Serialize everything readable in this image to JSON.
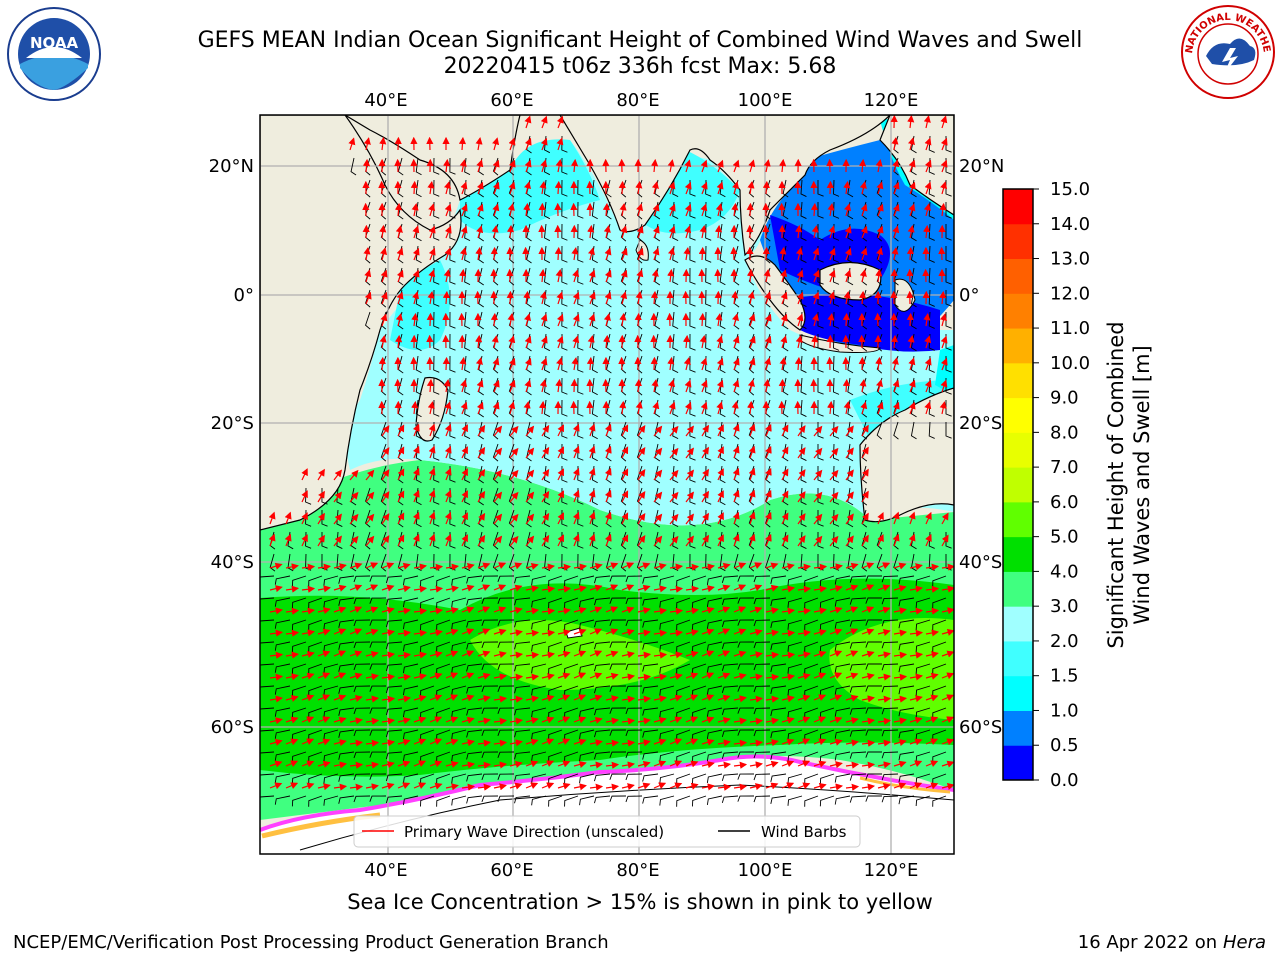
{
  "title": {
    "line1": "GEFS MEAN Indian Ocean Significant Height of Combined Wind Waves and Swell",
    "line2": "20220415 t06z 336h fcst   Max: 5.68"
  },
  "logos": {
    "left": {
      "icon": "noaa-logo",
      "text": "NOAA"
    },
    "right": {
      "icon": "nws-logo",
      "text": "NATIONAL WEATHER SERVICE"
    }
  },
  "map": {
    "lon_ticks": [
      "40°E",
      "60°E",
      "80°E",
      "100°E",
      "120°E"
    ],
    "lat_ticks": [
      "20°N",
      "0°",
      "20°S",
      "40°S",
      "60°S"
    ],
    "legend": {
      "wave_label": "Primary Wave Direction (unscaled)",
      "wind_label": "Wind Barbs"
    }
  },
  "colorbar": {
    "label_line1": "Significant Height of Combined",
    "label_line2": "Wind Waves and Swell [m]",
    "ticks": [
      "0.0",
      "0.5",
      "1.0",
      "1.5",
      "2.0",
      "3.0",
      "4.0",
      "5.0",
      "6.0",
      "7.0",
      "8.0",
      "9.0",
      "10.0",
      "11.0",
      "12.0",
      "13.0",
      "14.0",
      "15.0"
    ],
    "colors": [
      "#0000ff",
      "#0080ff",
      "#00ffff",
      "#40ffff",
      "#a0ffff",
      "#40ff80",
      "#00e000",
      "#60ff00",
      "#c0ff00",
      "#e8ff00",
      "#ffff00",
      "#ffe000",
      "#ffb000",
      "#ff8000",
      "#ff6000",
      "#ff3000",
      "#ff0000"
    ]
  },
  "colors": {
    "land": "#efedde",
    "grid": "#b0b0b0",
    "wave_arrow": "#ff0000",
    "wind_barb": "#000000"
  },
  "notes": {
    "sea_ice": "Sea Ice Concentration > 15% is shown in pink to yellow"
  },
  "footer": {
    "left": "NCEP/EMC/Verification Post Processing Product Generation Branch",
    "right_prefix": "16 Apr 2022 on ",
    "right_host": "Hera"
  }
}
